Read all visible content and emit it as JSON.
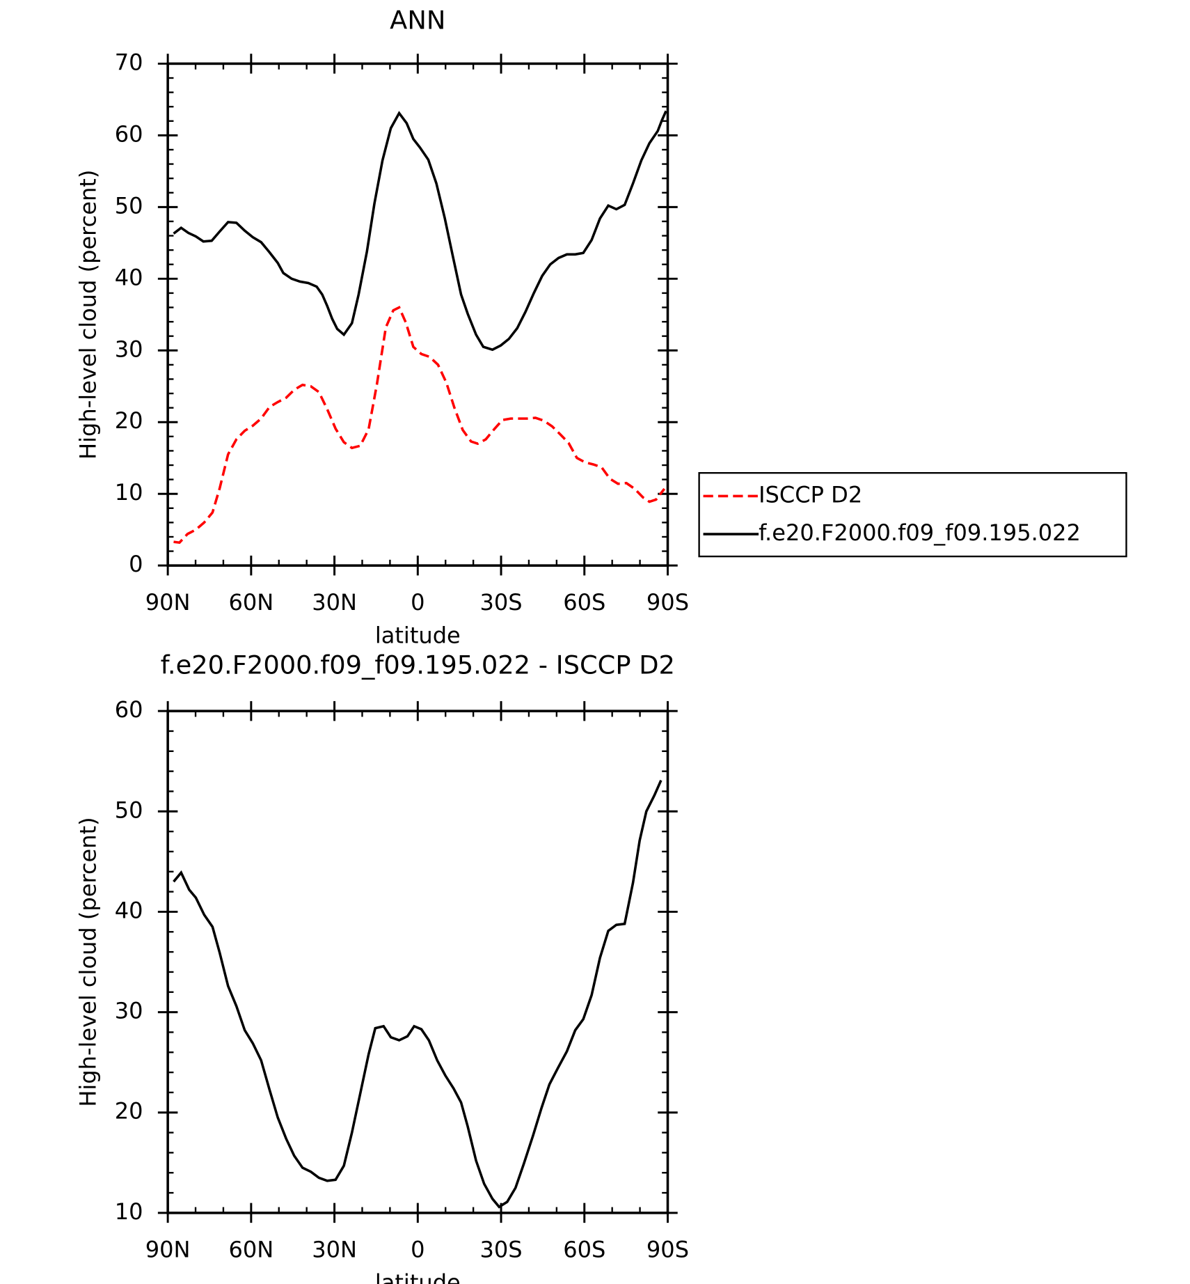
{
  "chart_data": [
    {
      "type": "line",
      "title": "ANN",
      "xlabel": "latitude",
      "ylabel": "High-level cloud (percent)",
      "xlim": [
        90,
        -90
      ],
      "xticks": [
        {
          "value": 90,
          "label": "90N"
        },
        {
          "value": 60,
          "label": "60N"
        },
        {
          "value": 30,
          "label": "30N"
        },
        0,
        {
          "value": -30,
          "label": "30S"
        },
        {
          "value": -60,
          "label": "60S"
        },
        {
          "value": -90,
          "label": "90S"
        }
      ],
      "ylim": [
        0,
        70
      ],
      "yticks": [
        0,
        10,
        20,
        30,
        40,
        50,
        60,
        70
      ],
      "legend": "right",
      "series": [
        {
          "name": "ISCCP D2",
          "color": "#ff0000",
          "linestyle": "dashed",
          "x": [
            87.9,
            85.8,
            82.9,
            79.9,
            76.9,
            73.9,
            71.3,
            68.3,
            65.3,
            62.3,
            59.4,
            56.4,
            53.4,
            50.4,
            47.4,
            44.5,
            41.5,
            38.5,
            35.6,
            32.6,
            29.6,
            26.6,
            23.7,
            20.7,
            17.7,
            14.7,
            11.5,
            8.8,
            6.7,
            4.3,
            1.6,
            -1.3,
            -4.3,
            -7.3,
            -10.3,
            -13.2,
            -16.2,
            -19.2,
            -21.6,
            -24.5,
            -27.5,
            -30.5,
            -33.5,
            -36.5,
            -39.4,
            -42.4,
            -45.4,
            -48.4,
            -51.3,
            -54.3,
            -57.3,
            -60.2,
            -63.2,
            -66.2,
            -69.2,
            -72.1,
            -75.1,
            -78.1,
            -81.1,
            -83.4,
            -85.8,
            -88.8
          ],
          "values": [
            3.3,
            3.2,
            4.4,
            5.0,
            6.0,
            7.4,
            10.8,
            15.5,
            17.6,
            18.8,
            19.5,
            20.5,
            22.1,
            22.8,
            23.4,
            24.5,
            25.2,
            25.0,
            24.2,
            21.8,
            19.1,
            17.2,
            16.4,
            16.7,
            19.0,
            25.3,
            33.2,
            35.6,
            36.0,
            33.9,
            30.5,
            29.5,
            29.1,
            28.0,
            25.5,
            22.0,
            18.9,
            17.3,
            17.0,
            17.6,
            19.0,
            20.3,
            20.5,
            20.5,
            20.5,
            20.6,
            20.2,
            19.4,
            18.3,
            17.1,
            15.0,
            14.4,
            14.1,
            13.7,
            12.1,
            11.4,
            11.5,
            10.7,
            9.5,
            8.9,
            9.2,
            10.7
          ]
        },
        {
          "name": "f.e20.F2000.f09_f09.195.022",
          "color": "#000000",
          "linestyle": "solid",
          "x": [
            87.9,
            85.2,
            82.6,
            79.9,
            77.2,
            74.2,
            71.3,
            68.3,
            65.3,
            62.3,
            59.4,
            56.4,
            53.4,
            50.4,
            48.4,
            45.4,
            42.4,
            39.4,
            36.4,
            34.4,
            32.6,
            30.8,
            29.0,
            26.6,
            23.7,
            21.3,
            18.3,
            15.6,
            12.7,
            9.7,
            6.7,
            4.0,
            1.6,
            -0.8,
            -3.8,
            -6.7,
            -9.7,
            -12.6,
            -15.6,
            -18.0,
            -21.0,
            -23.6,
            -26.9,
            -29.9,
            -32.8,
            -35.8,
            -38.8,
            -41.8,
            -44.8,
            -47.7,
            -50.7,
            -53.7,
            -56.7,
            -59.6,
            -62.6,
            -65.6,
            -68.6,
            -71.5,
            -74.5,
            -77.5,
            -80.5,
            -83.4,
            -86.4,
            -87.9,
            -89.4
          ],
          "values": [
            46.3,
            47.1,
            46.4,
            45.9,
            45.2,
            45.3,
            46.6,
            47.9,
            47.8,
            46.7,
            45.8,
            45.1,
            43.7,
            42.2,
            40.8,
            40.0,
            39.6,
            39.4,
            38.9,
            37.8,
            36.2,
            34.4,
            33.0,
            32.2,
            33.8,
            37.8,
            43.8,
            50.5,
            56.5,
            61.0,
            63.1,
            61.7,
            59.5,
            58.3,
            56.6,
            53.3,
            48.5,
            43.2,
            37.8,
            35.1,
            32.2,
            30.5,
            30.1,
            30.7,
            31.6,
            33.1,
            35.4,
            38.0,
            40.4,
            42.0,
            42.9,
            43.4,
            43.4,
            43.6,
            45.4,
            48.4,
            50.2,
            49.7,
            50.3,
            53.3,
            56.5,
            58.9,
            60.6,
            62.1,
            63.4
          ]
        }
      ]
    },
    {
      "type": "line",
      "title": "f.e20.F2000.f09_f09.195.022 - ISCCP D2",
      "xlabel": "latitude",
      "ylabel": "High-level cloud (percent)",
      "xlim": [
        90,
        -90
      ],
      "xticks": [
        {
          "value": 90,
          "label": "90N"
        },
        {
          "value": 60,
          "label": "60N"
        },
        {
          "value": 30,
          "label": "30N"
        },
        0,
        {
          "value": -30,
          "label": "30S"
        },
        {
          "value": -60,
          "label": "60S"
        },
        {
          "value": -90,
          "label": "90S"
        }
      ],
      "ylim": [
        10,
        60
      ],
      "yticks": [
        10,
        20,
        30,
        40,
        50,
        60
      ],
      "color": "#000000",
      "linestyle": "solid",
      "x": [
        87.9,
        85.2,
        82.3,
        79.9,
        76.9,
        73.9,
        71.3,
        68.3,
        65.3,
        62.3,
        59.4,
        56.4,
        53.4,
        50.4,
        47.4,
        44.5,
        41.5,
        38.5,
        35.6,
        32.6,
        29.6,
        26.6,
        23.7,
        20.7,
        17.7,
        15.3,
        12.3,
        9.7,
        6.7,
        3.7,
        1.3,
        -1.3,
        -4.0,
        -7.0,
        -9.9,
        -12.9,
        -15.6,
        -18.0,
        -21.0,
        -23.9,
        -26.9,
        -29.3,
        -32.2,
        -35.2,
        -38.2,
        -41.5,
        -44.5,
        -47.4,
        -50.4,
        -53.7,
        -56.7,
        -59.6,
        -62.6,
        -65.6,
        -68.6,
        -71.5,
        -74.5,
        -77.5,
        -79.9,
        -82.3,
        -85.2,
        -87.6
      ],
      "values": [
        43.0,
        43.9,
        42.2,
        41.4,
        39.7,
        38.5,
        35.9,
        32.6,
        30.6,
        28.2,
        26.9,
        25.2,
        22.3,
        19.5,
        17.4,
        15.7,
        14.5,
        14.1,
        13.5,
        13.2,
        13.3,
        14.7,
        18.0,
        21.9,
        25.8,
        28.4,
        28.6,
        27.5,
        27.2,
        27.6,
        28.6,
        28.3,
        27.2,
        25.2,
        23.7,
        22.4,
        21.0,
        18.6,
        15.2,
        12.9,
        11.4,
        10.6,
        11.1,
        12.5,
        14.9,
        17.7,
        20.4,
        22.8,
        24.4,
        26.1,
        28.2,
        29.3,
        31.7,
        35.4,
        38.1,
        38.7,
        38.8,
        42.9,
        47.1,
        50.0,
        51.6,
        53.1
      ]
    }
  ]
}
